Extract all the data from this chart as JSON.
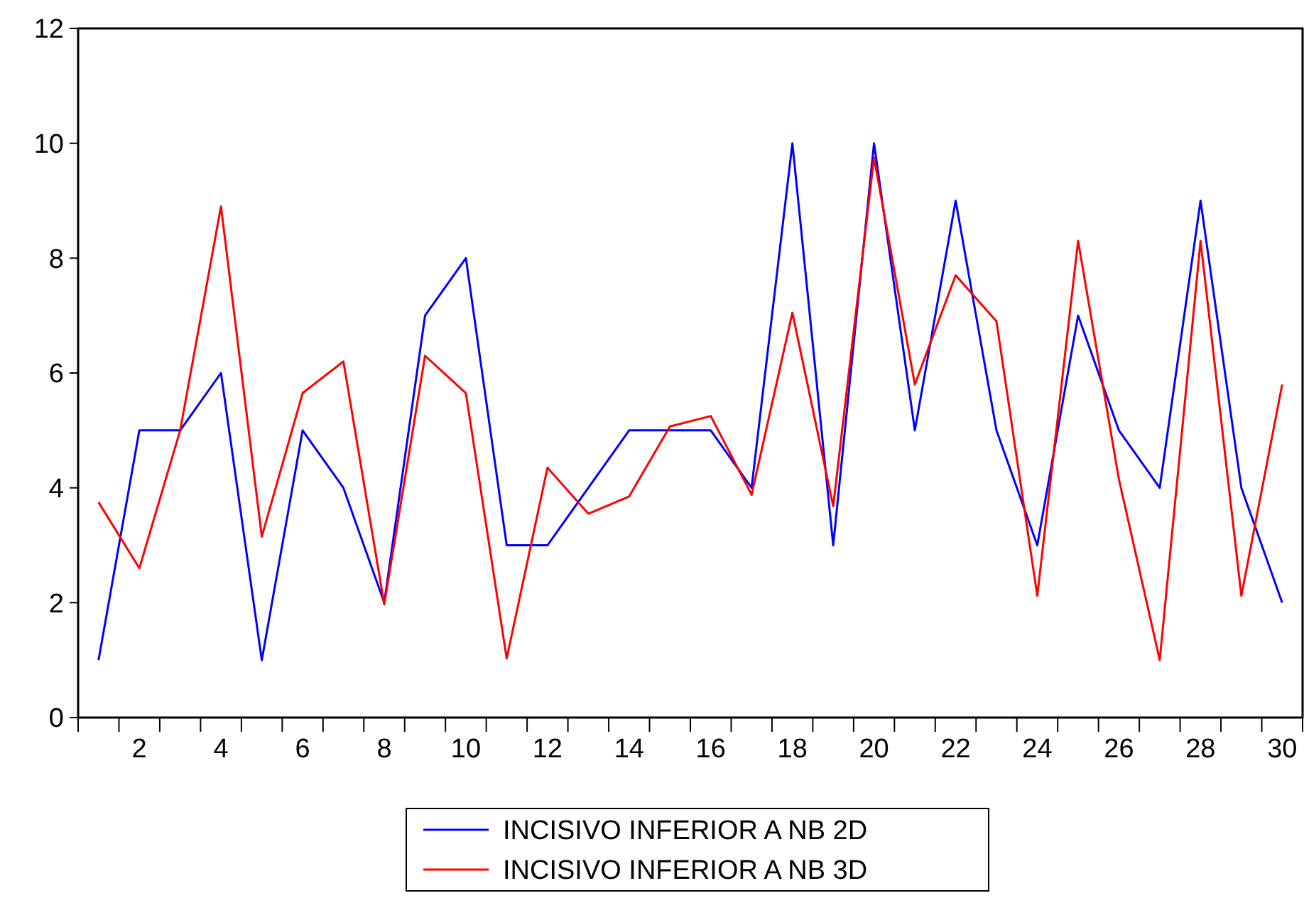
{
  "chart_data": {
    "type": "line",
    "x": [
      1,
      2,
      3,
      4,
      5,
      6,
      7,
      8,
      9,
      10,
      11,
      12,
      13,
      14,
      15,
      16,
      17,
      18,
      19,
      20,
      21,
      22,
      23,
      24,
      25,
      26,
      27,
      28,
      29,
      30
    ],
    "xlim": [
      0.5,
      30.5
    ],
    "xticks": [
      {
        "value": 0.5,
        "label": null
      },
      {
        "value": 1.5,
        "label": null
      },
      2,
      {
        "value": 2.5,
        "label": null
      },
      {
        "value": 3.5,
        "label": null
      },
      4,
      {
        "value": 4.5,
        "label": null
      },
      {
        "value": 5.5,
        "label": null
      },
      6,
      {
        "value": 6.5,
        "label": null
      },
      {
        "value": 7.5,
        "label": null
      },
      8,
      {
        "value": 8.5,
        "label": null
      },
      {
        "value": 9.5,
        "label": null
      },
      10,
      {
        "value": 10.5,
        "label": null
      },
      {
        "value": 11.5,
        "label": null
      },
      12,
      {
        "value": 12.5,
        "label": null
      },
      {
        "value": 13.5,
        "label": null
      },
      14,
      {
        "value": 14.5,
        "label": null
      },
      {
        "value": 15.5,
        "label": null
      },
      16,
      {
        "value": 16.5,
        "label": null
      },
      {
        "value": 17.5,
        "label": null
      },
      18,
      {
        "value": 18.5,
        "label": null
      },
      {
        "value": 19.5,
        "label": null
      },
      20,
      {
        "value": 20.5,
        "label": null
      },
      {
        "value": 21.5,
        "label": null
      },
      22,
      {
        "value": 22.5,
        "label": null
      },
      {
        "value": 23.5,
        "label": null
      },
      24,
      {
        "value": 24.5,
        "label": null
      },
      {
        "value": 25.5,
        "label": null
      },
      26,
      {
        "value": 26.5,
        "label": null
      },
      {
        "value": 27.5,
        "label": null
      },
      28,
      {
        "value": 28.5,
        "label": null
      },
      {
        "value": 29.5,
        "label": null
      },
      30,
      {
        "value": 30.5,
        "label": null
      }
    ],
    "series": [
      {
        "name": "INCISIVO INFERIOR A NB 2D",
        "color": "#0000ff",
        "values": [
          1,
          5,
          5,
          6,
          1,
          5,
          4,
          2,
          7,
          8,
          3,
          3,
          4,
          5,
          5,
          5,
          4,
          10,
          3,
          10,
          5,
          9,
          5,
          3,
          7,
          5,
          4,
          9,
          4,
          2
        ]
      },
      {
        "name": "INCISIVO INFERIOR A NB 3D",
        "color": "#ff0000",
        "values": [
          3.75,
          2.6,
          5.0,
          8.9,
          3.15,
          5.65,
          6.2,
          1.97,
          6.3,
          5.65,
          1.03,
          4.35,
          3.55,
          3.85,
          5.07,
          5.25,
          3.88,
          7.05,
          3.68,
          9.75,
          5.8,
          7.7,
          6.9,
          2.12,
          8.3,
          4.15,
          1.0,
          8.3,
          2.12,
          5.8
        ]
      }
    ],
    "ylim": [
      0,
      12
    ],
    "yticks": [
      0,
      2,
      4,
      6,
      8,
      10,
      12
    ],
    "grid": false,
    "legend": "bottom",
    "marker": "none",
    "line_style": "solid"
  }
}
